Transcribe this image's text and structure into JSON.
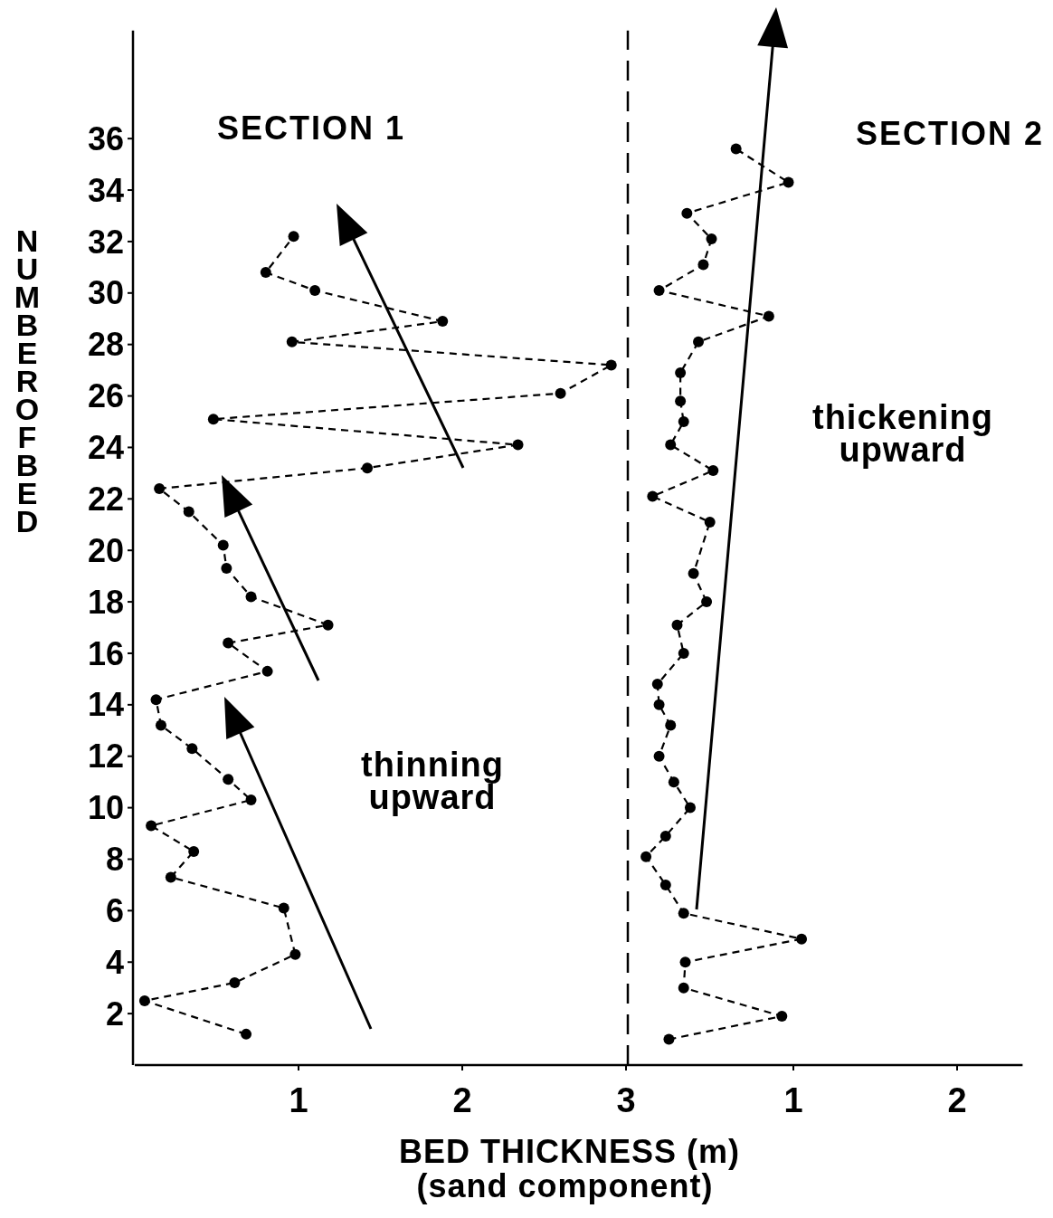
{
  "chart_data": [
    {
      "type": "line",
      "title": "SECTION 1",
      "ylabel": "NUMBER OF BED",
      "xlabel": "BED THICKNESS (m)\n(sand component)",
      "xlim": [
        0,
        3.0
      ],
      "xticks": [
        1,
        2,
        3
      ],
      "ylim": [
        0,
        40.2
      ],
      "yticks": [
        2,
        4,
        6,
        8,
        10,
        12,
        14,
        16,
        18,
        20,
        22,
        24,
        26,
        28,
        30,
        32,
        34,
        36
      ],
      "marker": "circle",
      "line_style": "dashed",
      "grid": false,
      "annotations": [
        "thinning upward"
      ],
      "series": [
        {
          "color": "#000000",
          "x": [
            0.68,
            0.06,
            0.61,
            0.98,
            0.91,
            0.22,
            0.36,
            0.1,
            0.71,
            0.57,
            0.35,
            0.16,
            0.13,
            0.81,
            0.57,
            1.18,
            0.71,
            0.56,
            0.54,
            0.33,
            0.15,
            1.42,
            2.34,
            0.48,
            2.6,
            2.91,
            0.96,
            1.88,
            1.1,
            0.8,
            0.97
          ],
          "values": [
            1.2,
            2.5,
            3.2,
            4.3,
            6.1,
            7.3,
            8.3,
            9.3,
            10.3,
            11.1,
            12.3,
            13.2,
            14.2,
            15.3,
            16.4,
            17.1,
            18.2,
            19.3,
            20.2,
            21.5,
            22.4,
            23.2,
            24.1,
            25.1,
            26.1,
            27.2,
            28.1,
            28.9,
            30.1,
            30.8,
            32.2
          ]
        }
      ]
    },
    {
      "type": "line",
      "title": "SECTION 2",
      "xlim": [
        0,
        2.4
      ],
      "xticks": [
        1,
        2
      ],
      "ylim": [
        0,
        40.2
      ],
      "tick_labels": "x",
      "marker": "circle",
      "line_style": "dashed",
      "grid": false,
      "annotations": [
        "thickening upward"
      ],
      "series": [
        {
          "color": "#000000",
          "x": [
            0.24,
            0.93,
            0.33,
            0.34,
            1.05,
            0.33,
            0.22,
            0.1,
            0.22,
            0.37,
            0.27,
            0.18,
            0.25,
            0.18,
            0.17,
            0.33,
            0.29,
            0.47,
            0.39,
            0.49,
            0.14,
            0.51,
            0.25,
            0.33,
            0.31,
            0.31,
            0.42,
            0.85,
            0.18,
            0.45,
            0.5,
            0.35,
            0.97,
            0.65
          ],
          "values": [
            1.0,
            1.9,
            3.0,
            4.0,
            4.9,
            5.9,
            7.0,
            8.1,
            8.9,
            10.0,
            11.0,
            12.0,
            13.2,
            14.0,
            14.8,
            16.0,
            17.1,
            18.0,
            19.1,
            21.1,
            22.1,
            23.1,
            24.1,
            25.0,
            25.8,
            26.9,
            28.1,
            29.1,
            30.1,
            31.1,
            32.1,
            33.1,
            34.3,
            35.6
          ]
        }
      ]
    }
  ]
}
